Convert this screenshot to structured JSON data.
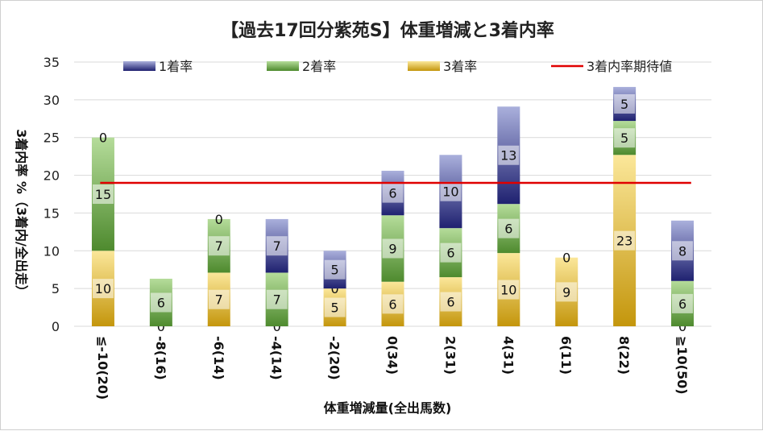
{
  "chart_data": {
    "type": "bar",
    "stacked": true,
    "title": "【過去17回分紫苑S】体重増減と3着内率",
    "xlabel": "体重増減量(全出馬数)",
    "ylabel": "3着内率 %（3着内/全出走）",
    "ylim": [
      0,
      35
    ],
    "yticks": [
      0,
      5,
      10,
      15,
      20,
      25,
      30,
      35
    ],
    "grid": true,
    "legend_position": "top",
    "categories": [
      "≦-10(20)",
      "-8(16)",
      "-6(14)",
      "-4(14)",
      "-2(20)",
      "0(34)",
      "2(31)",
      "4(31)",
      "6(11)",
      "8(22)",
      "≧10(50)"
    ],
    "series": [
      {
        "name": "3着率",
        "values": [
          10.0,
          0.0,
          7.1,
          0.0,
          5.0,
          5.9,
          6.5,
          9.7,
          9.1,
          22.7,
          0.0
        ],
        "labels": [
          "10",
          "0",
          "7",
          "0",
          "5",
          "6",
          "6",
          "10",
          "9",
          "23",
          "0"
        ],
        "colors": [
          "#fbe79a",
          "#c4960c"
        ]
      },
      {
        "name": "2着率",
        "values": [
          15.0,
          6.3,
          7.1,
          7.1,
          0.0,
          8.8,
          6.5,
          6.5,
          0.0,
          4.5,
          6.0
        ],
        "labels": [
          "15",
          "6",
          "7",
          "7",
          "0",
          "9",
          "6",
          "6",
          "0",
          "5",
          "6"
        ],
        "colors": [
          "#b5dc9a",
          "#4e8a2e"
        ]
      },
      {
        "name": "1着率",
        "values": [
          0.0,
          0.0,
          0.0,
          7.1,
          5.0,
          5.9,
          9.7,
          12.9,
          0.0,
          4.5,
          8.0
        ],
        "labels": [
          "0",
          "",
          "0",
          "7",
          "5",
          "6",
          "10",
          "13",
          "",
          "5",
          "8"
        ],
        "colors": [
          "#aab0dc",
          "#1f2170"
        ]
      }
    ],
    "reference_line": {
      "name": "3着内率期待値",
      "value": 19.0,
      "color": "#e00000"
    }
  }
}
